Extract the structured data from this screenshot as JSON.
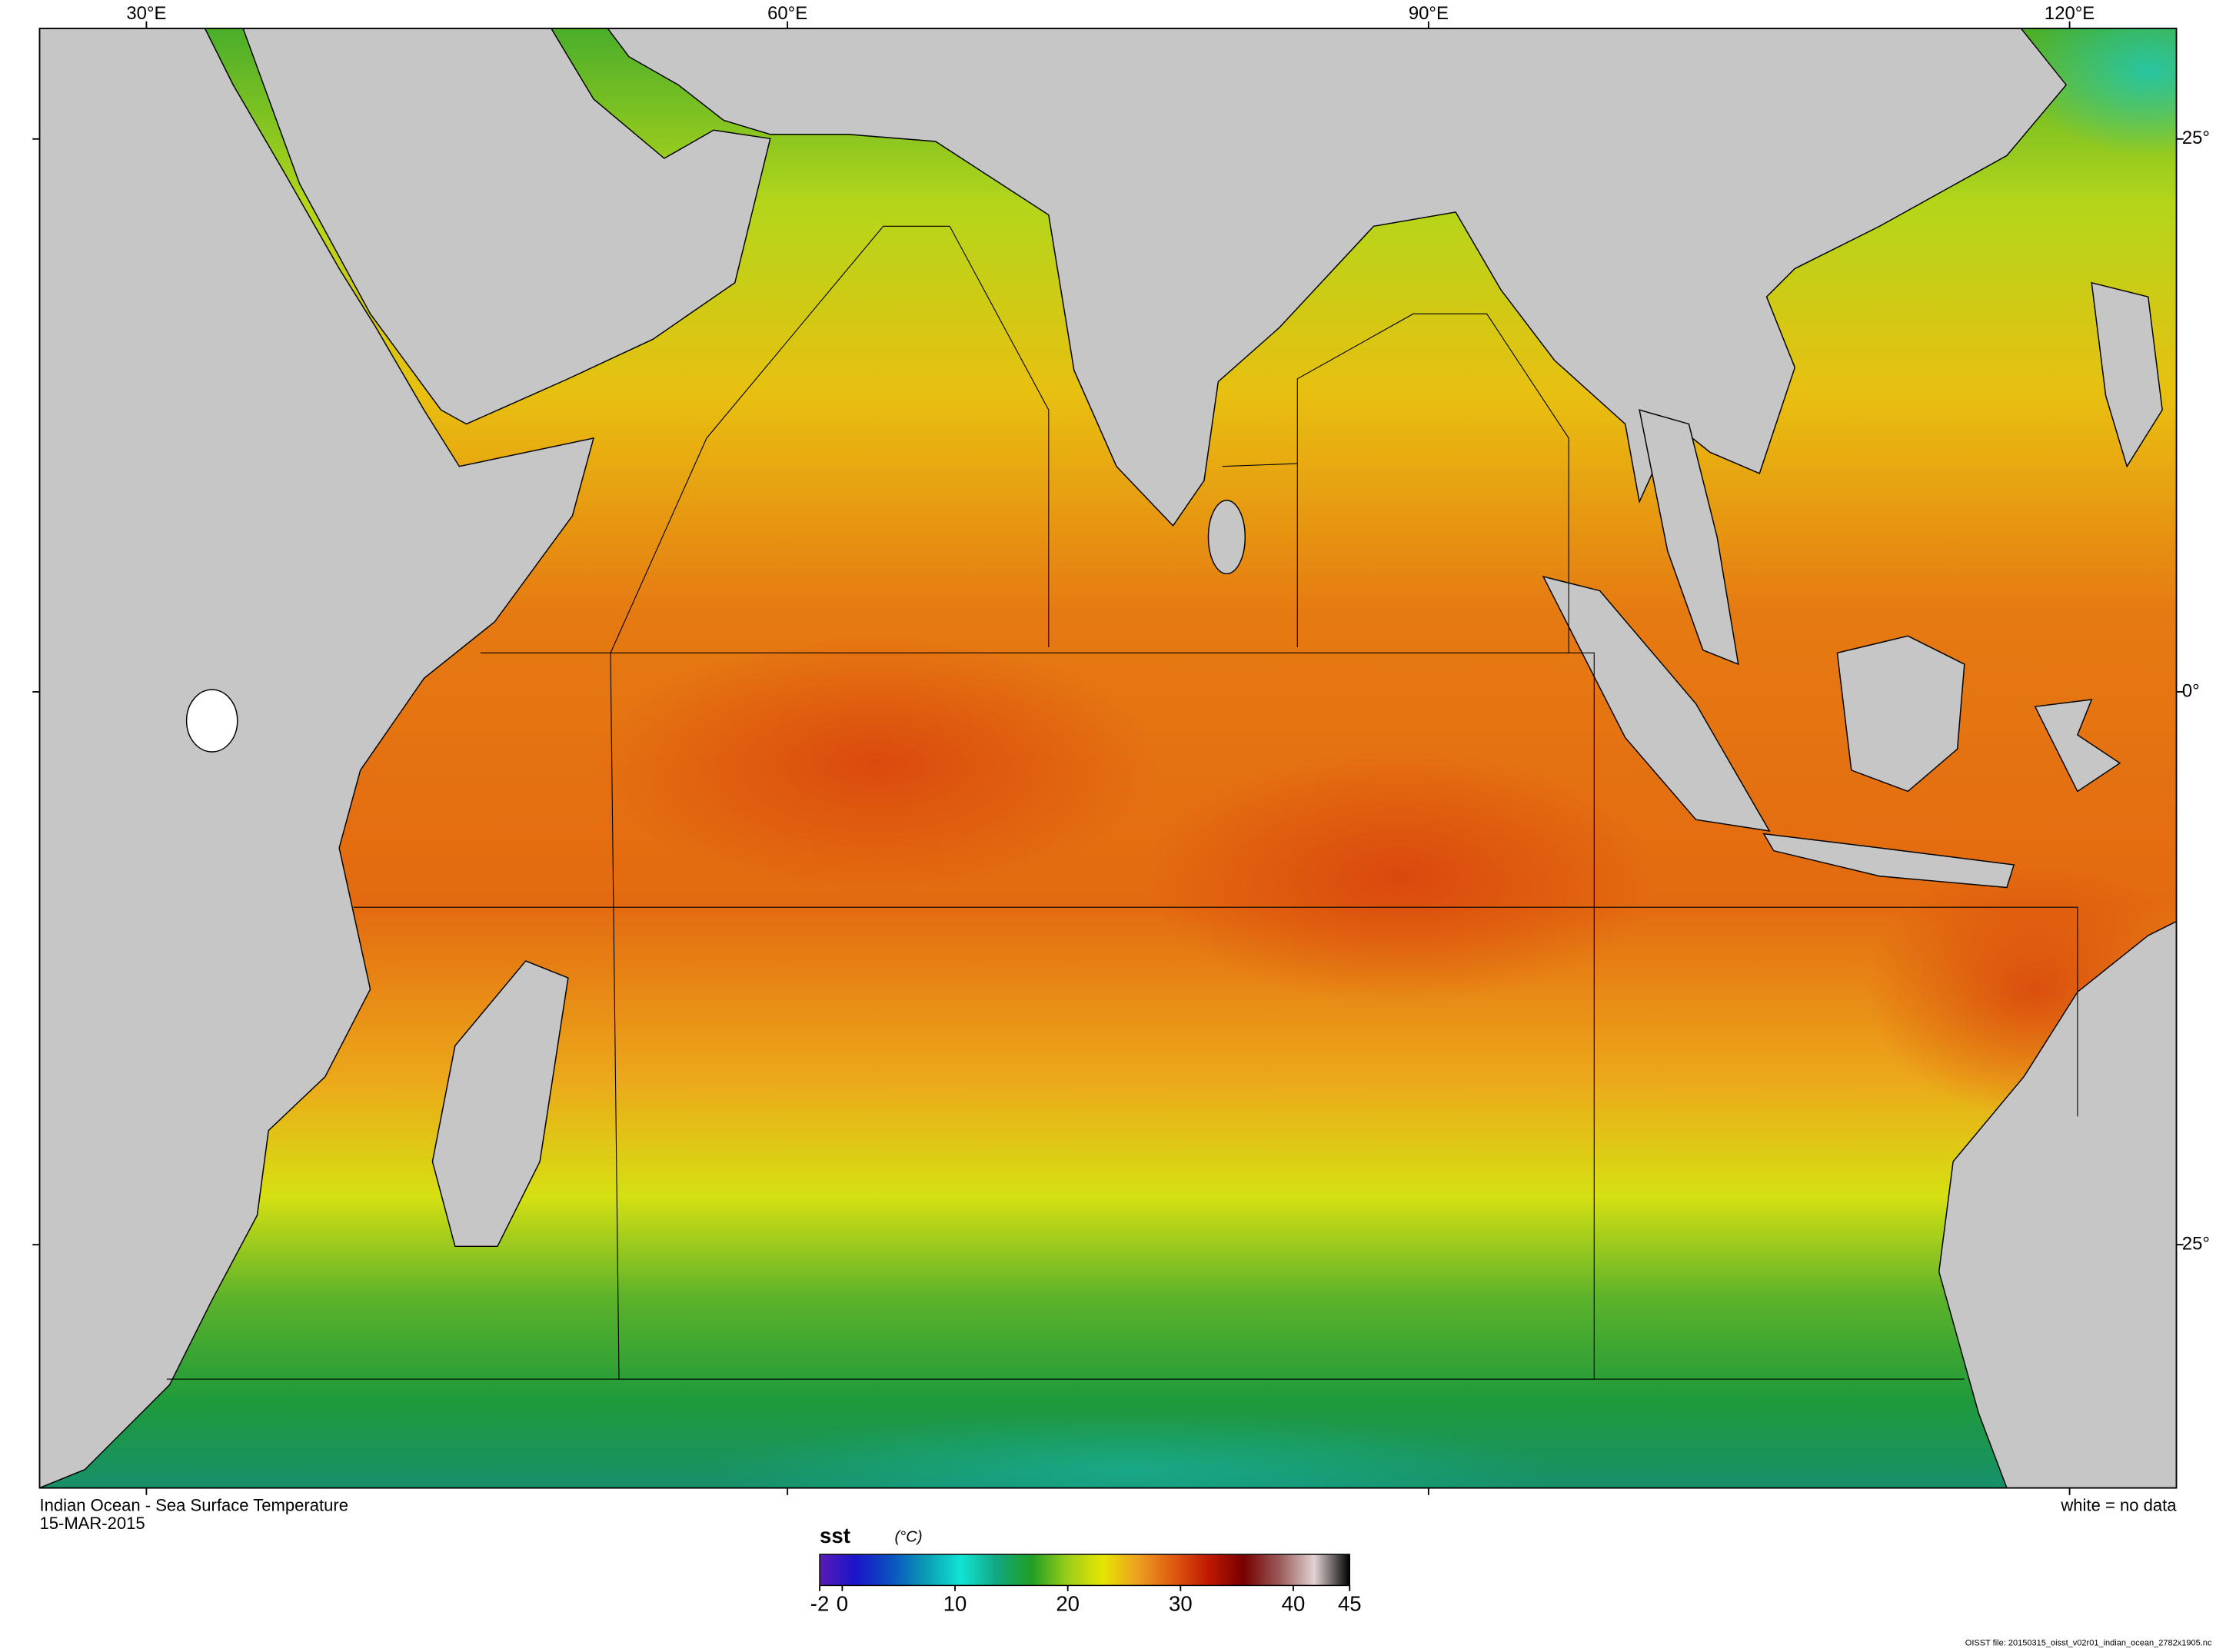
{
  "map": {
    "title": "Indian Ocean - Sea Surface Temperature",
    "date": "15-MAR-2015",
    "note": "white = no data",
    "lonlim": [
      25,
      125
    ],
    "latlim": [
      -36,
      30
    ],
    "lonticks": [
      {
        "value": 30,
        "label": "30°E"
      },
      {
        "value": 60,
        "label": "60°E"
      },
      {
        "value": 90,
        "label": "90°E"
      },
      {
        "value": 120,
        "label": "120°E"
      }
    ],
    "latticks": [
      {
        "value": 25,
        "label": "25°"
      },
      {
        "value": 0,
        "label": "0°"
      },
      {
        "value": -25,
        "label": "25°"
      }
    ]
  },
  "colorbar": {
    "variable": "sst",
    "unit": "(°C)",
    "lim": [
      -2,
      45
    ],
    "ticks": [
      -2,
      0,
      10,
      20,
      30,
      40,
      45
    ],
    "colors": [
      "#5a1cb5",
      "#1a14c8",
      "#0a50c0",
      "#0a9cb4",
      "#10e4d4",
      "#12a882",
      "#1f9e22",
      "#9acd1a",
      "#e6e600",
      "#eca020",
      "#e05a10",
      "#c01800",
      "#760000",
      "#9a5858",
      "#e2d2d2",
      "#000000"
    ]
  },
  "footer": {
    "file": "OISST file: 20150315_oisst_v02r01_indian_ocean_2782x1905.nc"
  }
}
